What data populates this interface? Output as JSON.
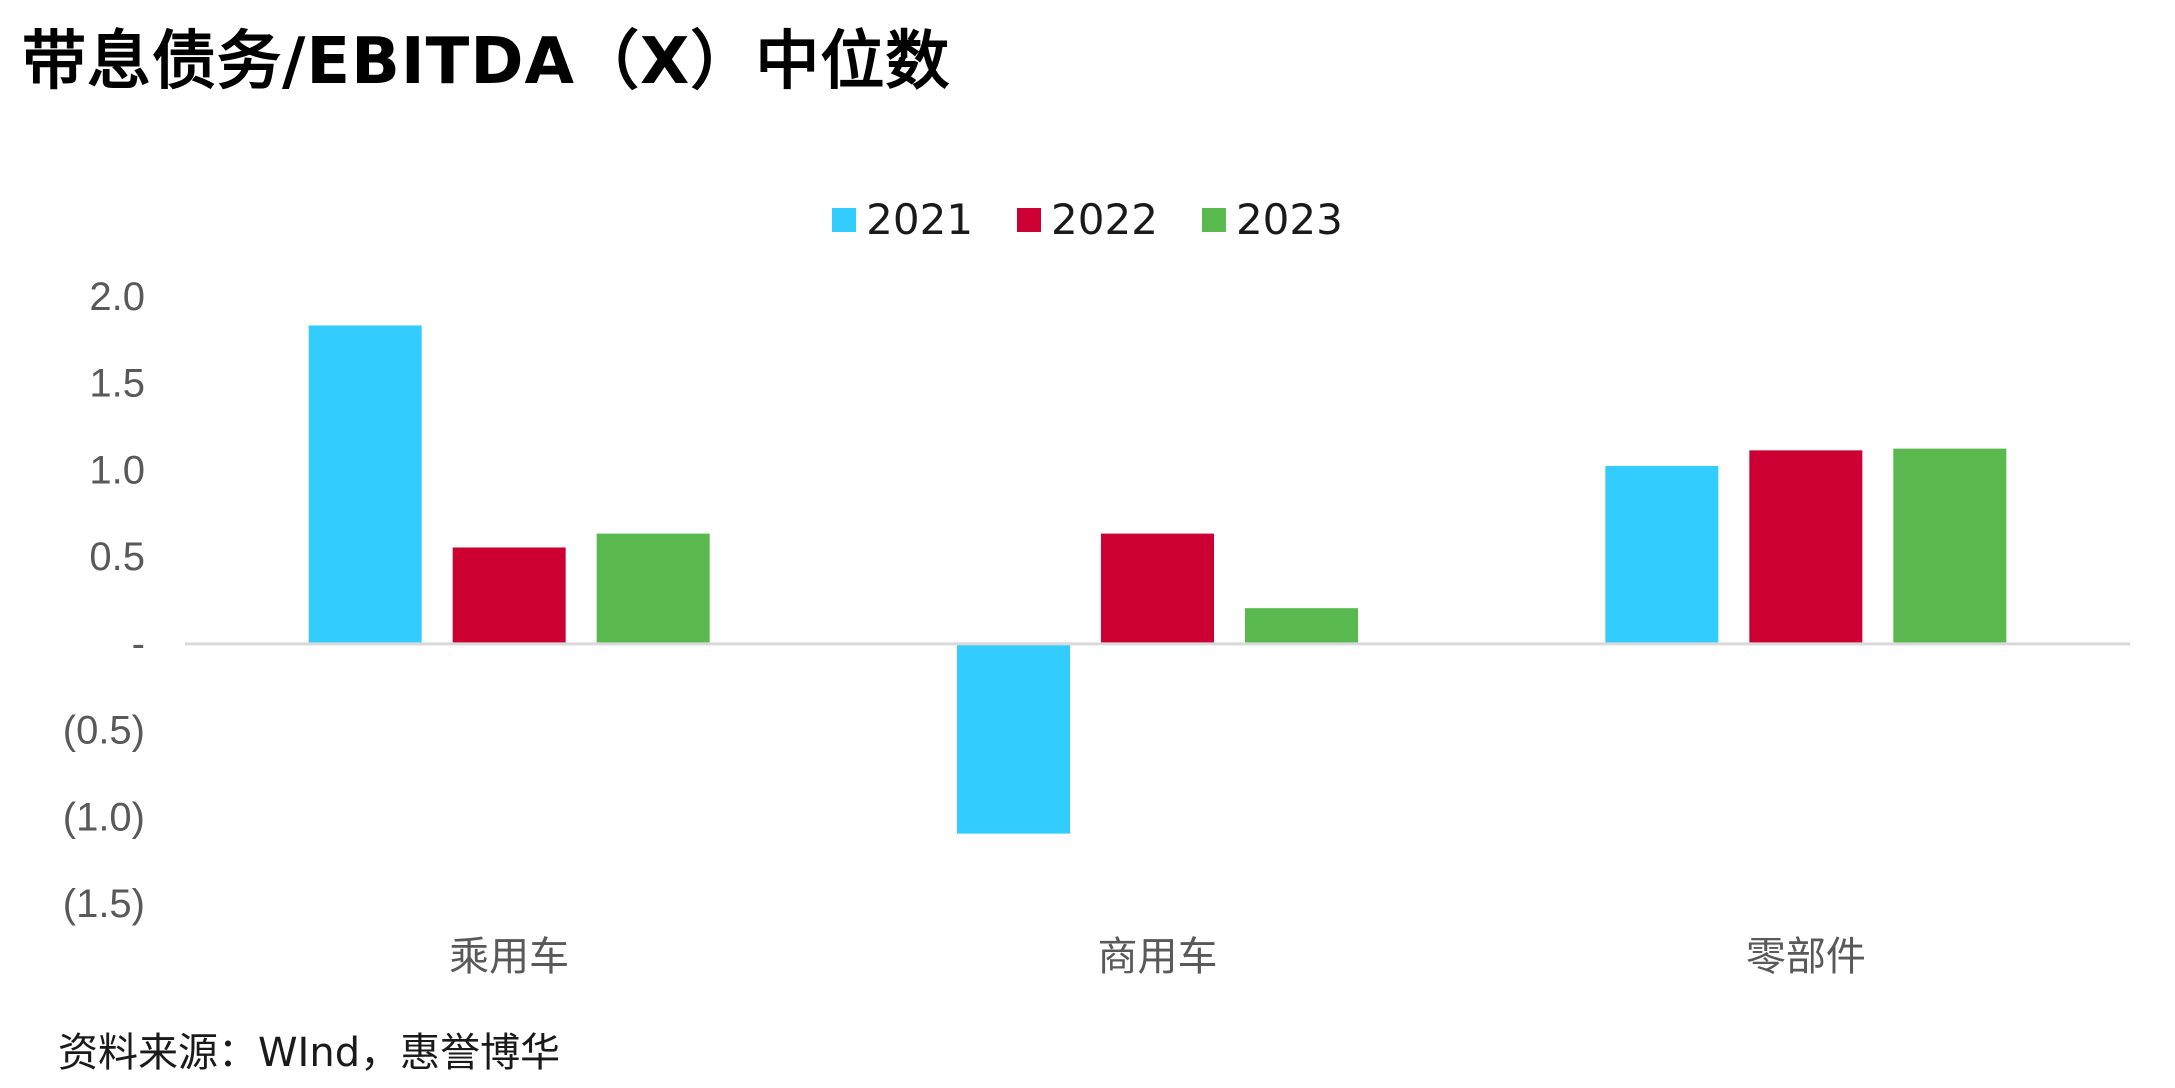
{
  "title": "带息债务/EBITDA（X）中位数",
  "source": "资料来源：WInd，惠誉博华",
  "chart_data": {
    "type": "bar",
    "title": "带息债务/EBITDA（X）中位数",
    "categories": [
      "乘用车",
      "商用车",
      "零部件"
    ],
    "series": [
      {
        "name": "2021",
        "color": "#33CCFF",
        "values": [
          1.83,
          -1.1,
          1.02
        ]
      },
      {
        "name": "2022",
        "color": "#CC0033",
        "values": [
          0.55,
          0.63,
          1.11
        ]
      },
      {
        "name": "2023",
        "color": "#59B94F",
        "values": [
          0.63,
          0.2,
          1.12
        ]
      }
    ],
    "ylim": [
      -1.5,
      2.0
    ],
    "yticks": [
      2.0,
      1.5,
      1.0,
      0.5,
      0,
      -0.5,
      -1.0,
      -1.5
    ],
    "ytick_labels": [
      "2.0",
      "1.5",
      "1.0",
      "0.5",
      "-",
      "(0.5)",
      "(1.0)",
      "(1.5)"
    ],
    "legend_position": "top-center",
    "grid": false,
    "xlabel": "",
    "ylabel": ""
  }
}
